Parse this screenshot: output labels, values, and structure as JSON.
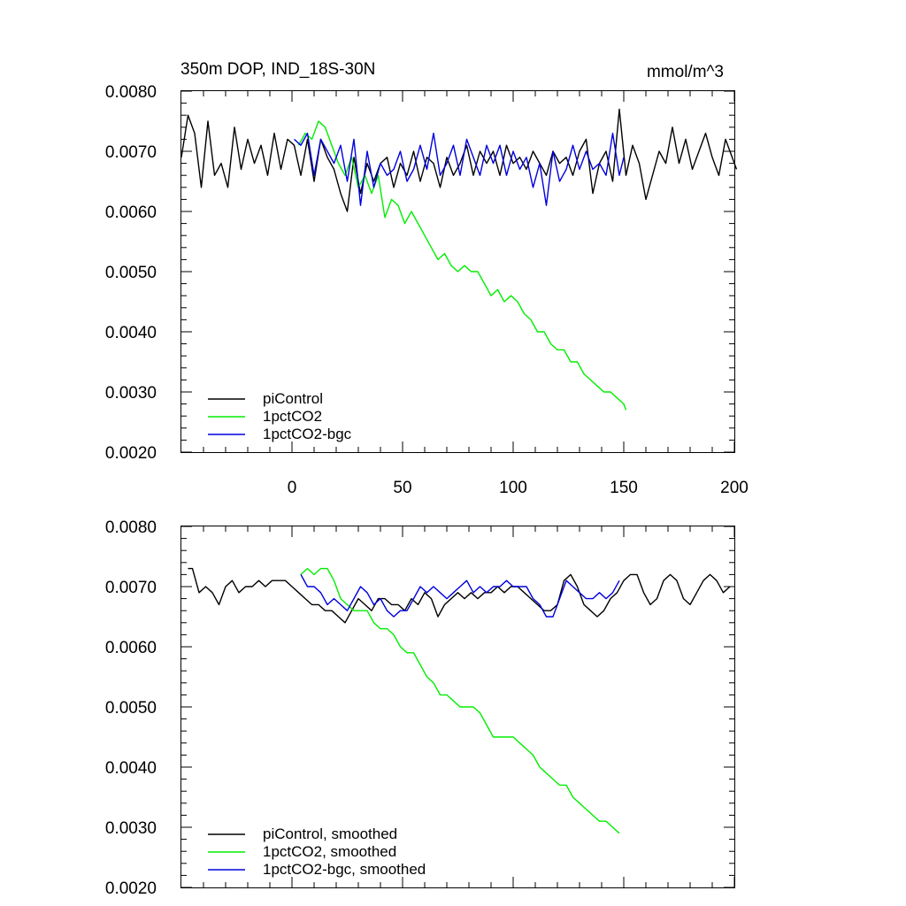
{
  "chart_data": [
    {
      "type": "line",
      "title_left": "350m DOP, IND_18S-30N",
      "title_right": "mmol/m^3",
      "xlim": [
        -50,
        200
      ],
      "ylim": [
        0.002,
        0.008
      ],
      "y_ticks": [
        "0.0080",
        "0.0070",
        "0.0060",
        "0.0050",
        "0.0040",
        "0.0030",
        "0.0020"
      ],
      "x_ticks": [
        "0",
        "50",
        "100",
        "150",
        "200"
      ],
      "legend_position": "bottom-left",
      "series": [
        {
          "name": "piControl",
          "color": "#000000",
          "x": [
            -50,
            -47,
            -44,
            -41,
            -38,
            -35,
            -32,
            -29,
            -26,
            -23,
            -20,
            -17,
            -14,
            -11,
            -8,
            -5,
            -2,
            1,
            4,
            7,
            10,
            13,
            16,
            19,
            22,
            25,
            28,
            31,
            34,
            37,
            40,
            43,
            46,
            49,
            52,
            55,
            58,
            61,
            64,
            67,
            70,
            73,
            76,
            79,
            82,
            85,
            88,
            91,
            94,
            97,
            100,
            103,
            106,
            109,
            112,
            115,
            118,
            121,
            124,
            127,
            130,
            133,
            136,
            139,
            142,
            145,
            148,
            151,
            154,
            157,
            160,
            163,
            166,
            169,
            172,
            175,
            178,
            181,
            184,
            187,
            190,
            193,
            196,
            199,
            201
          ],
          "y": [
            0.0069,
            0.0076,
            0.0073,
            0.0064,
            0.0075,
            0.0066,
            0.0068,
            0.0064,
            0.0074,
            0.0067,
            0.0072,
            0.0068,
            0.0071,
            0.0066,
            0.0073,
            0.0067,
            0.0072,
            0.0071,
            0.0066,
            0.0072,
            0.0065,
            0.0072,
            0.0069,
            0.0067,
            0.0063,
            0.006,
            0.0069,
            0.0063,
            0.0068,
            0.0065,
            0.0068,
            0.0069,
            0.0064,
            0.0068,
            0.0066,
            0.007,
            0.0065,
            0.0069,
            0.0068,
            0.0064,
            0.0069,
            0.0066,
            0.0068,
            0.0071,
            0.0066,
            0.007,
            0.0068,
            0.007,
            0.0066,
            0.0071,
            0.0068,
            0.0069,
            0.0067,
            0.007,
            0.0068,
            0.0066,
            0.007,
            0.0068,
            0.0069,
            0.0066,
            0.007,
            0.0072,
            0.0063,
            0.0068,
            0.007,
            0.0065,
            0.0077,
            0.0066,
            0.0071,
            0.0068,
            0.0062,
            0.0066,
            0.007,
            0.0068,
            0.0074,
            0.0068,
            0.0072,
            0.0067,
            0.007,
            0.0073,
            0.0069,
            0.0066,
            0.0072,
            0.0069,
            0.0067
          ]
        },
        {
          "name": "1pctCO2",
          "color": "#00ee00",
          "x": [
            3,
            6,
            9,
            12,
            15,
            18,
            21,
            24,
            27,
            30,
            33,
            36,
            39,
            42,
            45,
            48,
            51,
            54,
            57,
            60,
            63,
            66,
            69,
            72,
            75,
            78,
            81,
            84,
            87,
            90,
            93,
            96,
            99,
            102,
            105,
            108,
            111,
            114,
            117,
            120,
            123,
            126,
            129,
            132,
            135,
            138,
            141,
            144,
            147,
            150,
            151
          ],
          "y": [
            0.0071,
            0.0073,
            0.0072,
            0.0075,
            0.0074,
            0.0071,
            0.0068,
            0.0066,
            0.0069,
            0.0064,
            0.0066,
            0.0063,
            0.0066,
            0.0059,
            0.0062,
            0.0061,
            0.0058,
            0.006,
            0.0058,
            0.0056,
            0.0054,
            0.0052,
            0.0053,
            0.0051,
            0.005,
            0.0051,
            0.005,
            0.005,
            0.0048,
            0.0046,
            0.0047,
            0.0045,
            0.0046,
            0.0045,
            0.0043,
            0.0042,
            0.004,
            0.004,
            0.0038,
            0.0037,
            0.0037,
            0.0035,
            0.0035,
            0.0033,
            0.0032,
            0.0031,
            0.003,
            0.003,
            0.0029,
            0.0028,
            0.0027
          ]
        },
        {
          "name": "1pctCO2-bgc",
          "color": "#0000dd",
          "x": [
            1,
            4,
            7,
            10,
            13,
            16,
            19,
            22,
            25,
            28,
            31,
            34,
            37,
            40,
            43,
            46,
            49,
            52,
            55,
            58,
            61,
            64,
            67,
            70,
            73,
            76,
            79,
            82,
            85,
            88,
            91,
            94,
            97,
            100,
            103,
            106,
            109,
            112,
            115,
            118,
            121,
            124,
            127,
            130,
            133,
            136,
            139,
            142,
            145,
            148,
            150
          ],
          "y": [
            0.0072,
            0.0071,
            0.0073,
            0.0066,
            0.0072,
            0.007,
            0.0068,
            0.0071,
            0.0065,
            0.0072,
            0.0061,
            0.007,
            0.0064,
            0.0068,
            0.0066,
            0.0067,
            0.007,
            0.0065,
            0.0067,
            0.0071,
            0.0067,
            0.0073,
            0.0066,
            0.0068,
            0.0071,
            0.0066,
            0.0072,
            0.0069,
            0.0066,
            0.0071,
            0.0068,
            0.0071,
            0.0066,
            0.007,
            0.0067,
            0.0069,
            0.0064,
            0.0068,
            0.0061,
            0.007,
            0.0065,
            0.0067,
            0.0071,
            0.0067,
            0.007,
            0.0067,
            0.0068,
            0.0066,
            0.0073,
            0.0066,
            0.0069
          ]
        }
      ]
    },
    {
      "type": "line",
      "xlim": [
        -50,
        200
      ],
      "ylim": [
        0.002,
        0.008
      ],
      "y_ticks": [
        "0.0080",
        "0.0070",
        "0.0060",
        "0.0050",
        "0.0040",
        "0.0030",
        "0.0020"
      ],
      "legend_position": "bottom-left",
      "series": [
        {
          "name": "piControl, smoothed",
          "color": "#000000",
          "x": [
            -47,
            -45,
            -42,
            -39,
            -36,
            -33,
            -30,
            -27,
            -24,
            -21,
            -18,
            -15,
            -12,
            -9,
            -6,
            -3,
            0,
            3,
            6,
            9,
            12,
            15,
            18,
            21,
            24,
            27,
            30,
            33,
            36,
            39,
            42,
            45,
            48,
            51,
            54,
            57,
            60,
            63,
            66,
            69,
            72,
            75,
            78,
            81,
            84,
            87,
            90,
            93,
            96,
            99,
            102,
            105,
            108,
            111,
            114,
            117,
            120,
            123,
            126,
            129,
            132,
            135,
            138,
            141,
            144,
            147,
            150,
            153,
            156,
            159,
            162,
            165,
            168,
            171,
            174,
            177,
            180,
            183,
            186,
            189,
            192,
            195,
            198
          ],
          "y": [
            0.0073,
            0.0073,
            0.0069,
            0.007,
            0.0069,
            0.0067,
            0.007,
            0.0071,
            0.0069,
            0.007,
            0.007,
            0.0071,
            0.007,
            0.0071,
            0.0071,
            0.0071,
            0.007,
            0.0069,
            0.0068,
            0.0067,
            0.0067,
            0.0066,
            0.0066,
            0.0065,
            0.0064,
            0.0066,
            0.0068,
            0.0067,
            0.0066,
            0.0068,
            0.0068,
            0.0067,
            0.0067,
            0.0066,
            0.0068,
            0.0067,
            0.0069,
            0.0068,
            0.0065,
            0.0067,
            0.0068,
            0.0069,
            0.0068,
            0.0069,
            0.0068,
            0.0069,
            0.0069,
            0.007,
            0.0069,
            0.007,
            0.007,
            0.0069,
            0.0068,
            0.0067,
            0.0066,
            0.0066,
            0.0067,
            0.0071,
            0.0072,
            0.007,
            0.0067,
            0.0066,
            0.0065,
            0.0066,
            0.0068,
            0.0069,
            0.0071,
            0.0072,
            0.0072,
            0.0069,
            0.0067,
            0.0068,
            0.0071,
            0.0072,
            0.0071,
            0.0068,
            0.0067,
            0.0069,
            0.0071,
            0.0072,
            0.0071,
            0.0069,
            0.007
          ]
        },
        {
          "name": "1pctCO2, smoothed",
          "color": "#00ee00",
          "x": [
            4,
            7,
            10,
            13,
            16,
            19,
            22,
            25,
            28,
            31,
            34,
            37,
            40,
            43,
            46,
            49,
            52,
            55,
            58,
            61,
            64,
            67,
            70,
            73,
            76,
            79,
            82,
            85,
            88,
            91,
            94,
            97,
            100,
            103,
            106,
            109,
            112,
            115,
            118,
            121,
            124,
            127,
            130,
            133,
            136,
            139,
            142,
            145,
            148
          ],
          "y": [
            0.0072,
            0.0073,
            0.0072,
            0.0073,
            0.0073,
            0.0071,
            0.0068,
            0.0067,
            0.0066,
            0.0066,
            0.0066,
            0.0064,
            0.0063,
            0.0063,
            0.0062,
            0.006,
            0.0059,
            0.0059,
            0.0057,
            0.0055,
            0.0054,
            0.0052,
            0.0052,
            0.0051,
            0.005,
            0.005,
            0.005,
            0.0049,
            0.0047,
            0.0045,
            0.0045,
            0.0045,
            0.0045,
            0.0044,
            0.0043,
            0.0042,
            0.004,
            0.0039,
            0.0038,
            0.0037,
            0.0037,
            0.0035,
            0.0034,
            0.0033,
            0.0032,
            0.0031,
            0.0031,
            0.003,
            0.0029
          ]
        },
        {
          "name": "1pctCO2-bgc, smoothed",
          "color": "#0000dd",
          "x": [
            4,
            7,
            10,
            13,
            16,
            19,
            22,
            25,
            28,
            31,
            34,
            37,
            40,
            43,
            46,
            49,
            52,
            55,
            58,
            61,
            64,
            67,
            70,
            73,
            76,
            79,
            82,
            85,
            88,
            91,
            94,
            97,
            100,
            103,
            106,
            109,
            112,
            115,
            118,
            121,
            124,
            127,
            130,
            133,
            136,
            139,
            142,
            145,
            148
          ],
          "y": [
            0.0072,
            0.007,
            0.007,
            0.0069,
            0.0067,
            0.0068,
            0.0067,
            0.0066,
            0.0068,
            0.007,
            0.0069,
            0.0067,
            0.0068,
            0.0066,
            0.0065,
            0.0066,
            0.0066,
            0.0068,
            0.007,
            0.0069,
            0.007,
            0.0069,
            0.0068,
            0.0069,
            0.007,
            0.0071,
            0.0069,
            0.007,
            0.0069,
            0.007,
            0.007,
            0.0071,
            0.007,
            0.007,
            0.007,
            0.0068,
            0.0067,
            0.0065,
            0.0065,
            0.0068,
            0.0071,
            0.007,
            0.0069,
            0.0068,
            0.0068,
            0.0069,
            0.0068,
            0.0069,
            0.0071
          ]
        }
      ]
    }
  ]
}
